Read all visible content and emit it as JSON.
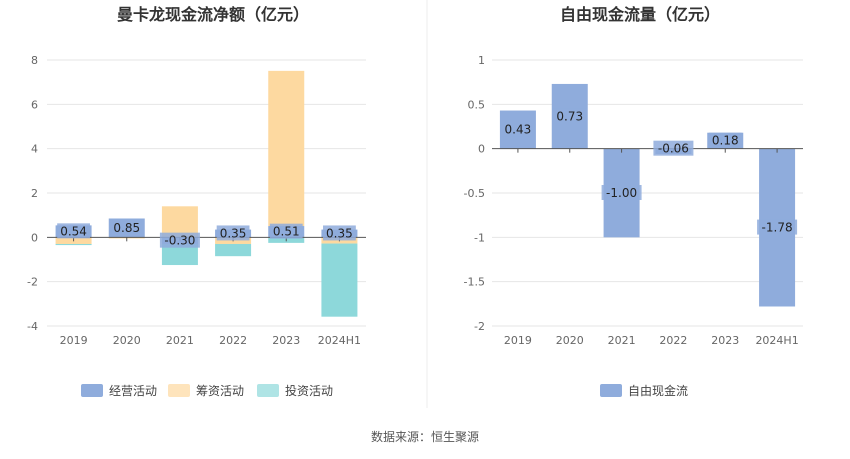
{
  "footer": {
    "source": "数据来源：恒生聚源"
  },
  "chart_data": [
    {
      "type": "bar",
      "stacked": true,
      "title": "曼卡龙现金流净额（亿元）",
      "categories": [
        "2019",
        "2020",
        "2021",
        "2022",
        "2023",
        "2024H1"
      ],
      "ylim": [
        -4,
        8
      ],
      "yticks": [
        -4,
        -2,
        0,
        2,
        4,
        6,
        8
      ],
      "grid": true,
      "legend_position": "bottom",
      "series": [
        {
          "name": "经营活动",
          "color": "#8facdc",
          "values": [
            0.54,
            0.85,
            -0.3,
            0.35,
            0.51,
            0.35
          ]
        },
        {
          "name": "筹资活动",
          "color": "#fdd9a0",
          "values": [
            -0.3,
            -0.05,
            1.4,
            -0.3,
            7.0,
            -0.28
          ]
        },
        {
          "name": "投资活动",
          "color": "#8dd8da",
          "values": [
            -0.05,
            0.0,
            -0.95,
            -0.55,
            -0.25,
            -3.3
          ]
        }
      ],
      "data_labels": [
        "0.54",
        "0.85",
        "-0.30",
        "0.35",
        "0.51",
        "0.35"
      ]
    },
    {
      "type": "bar",
      "stacked": false,
      "title": "自由现金流量（亿元）",
      "categories": [
        "2019",
        "2020",
        "2021",
        "2022",
        "2023",
        "2024H1"
      ],
      "ylim": [
        -2,
        1
      ],
      "yticks": [
        -2,
        -1.5,
        -1,
        -0.5,
        0,
        0.5,
        1
      ],
      "grid": true,
      "legend_position": "bottom",
      "series": [
        {
          "name": "自由现金流",
          "color": "#8facdc",
          "values": [
            0.43,
            0.73,
            -1.0,
            -0.06,
            0.18,
            -1.78
          ]
        }
      ],
      "data_labels": [
        "0.43",
        "0.73",
        "-1.00",
        "-0.06",
        "0.18",
        "-1.78"
      ]
    }
  ]
}
